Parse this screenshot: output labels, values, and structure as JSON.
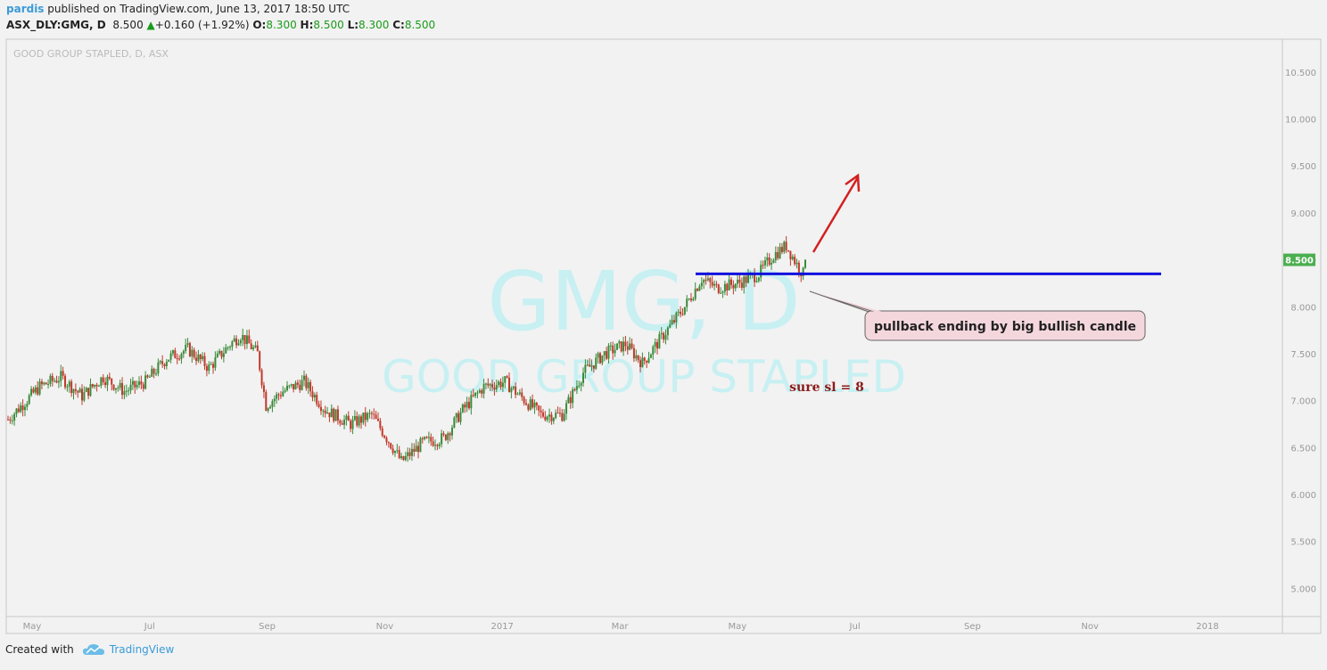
{
  "header": {
    "user": "pardis",
    "published": "published on TradingView.com, June 13, 2017 18:50 UTC",
    "symbol_line": "ASX_DLY:GMG, D",
    "last": "8.500",
    "change": "+0.160 (+1.92%)",
    "o_label": "O:",
    "o": "8.300",
    "h_label": "H:",
    "h": "8.500",
    "l_label": "L:",
    "l": "8.300",
    "c_label": "C:",
    "c": "8.500"
  },
  "footer": {
    "created_with": "Created with",
    "brand": "TradingView",
    "logo_icon": "tradingview-cloud-icon"
  },
  "colors": {
    "up": "#3a8a3a",
    "down": "#c0392b",
    "hline": "#1111dd",
    "arrow": "#d32020",
    "watermark": "#c8f0f2",
    "callout_bg": "#f4d7dd",
    "price_badge": "#4caf50"
  },
  "chart_data": {
    "type": "candlestick",
    "symbol_label": "GOOD GROUP STAPLED, D, ASX",
    "watermark_symbol": "GMG, D",
    "watermark_name": "GOOD GROUP STAPLED",
    "x_ticks": [
      "May",
      "Jul",
      "Sep",
      "Nov",
      "2017",
      "Mar",
      "May",
      "Jul",
      "Sep",
      "Nov",
      "2018"
    ],
    "y_ticks": [
      "10.500",
      "10.000",
      "9.500",
      "9.000",
      "8.500",
      "8.000",
      "7.500",
      "7.000",
      "6.500",
      "6.000",
      "5.500",
      "5.000"
    ],
    "ylim": [
      4.7,
      10.85
    ],
    "current_price": "8.500",
    "horizontal_line": 8.35,
    "annotation": "pullback ending by big bullish candle",
    "note": "sure sl = 8",
    "trend_path": [
      [
        0,
        6.8
      ],
      [
        15,
        7.15
      ],
      [
        25,
        7.25
      ],
      [
        35,
        7.05
      ],
      [
        45,
        7.25
      ],
      [
        55,
        7.1
      ],
      [
        65,
        7.2
      ],
      [
        75,
        7.45
      ],
      [
        85,
        7.55
      ],
      [
        95,
        7.35
      ],
      [
        105,
        7.6
      ],
      [
        110,
        7.7
      ],
      [
        118,
        7.5
      ],
      [
        122,
        6.95
      ],
      [
        130,
        7.1
      ],
      [
        140,
        7.2
      ],
      [
        150,
        6.9
      ],
      [
        162,
        6.75
      ],
      [
        172,
        6.85
      ],
      [
        182,
        6.5
      ],
      [
        186,
        6.35
      ],
      [
        196,
        6.55
      ],
      [
        206,
        6.6
      ],
      [
        215,
        6.9
      ],
      [
        225,
        7.15
      ],
      [
        235,
        7.2
      ],
      [
        242,
        7.05
      ],
      [
        252,
        6.85
      ],
      [
        262,
        6.85
      ],
      [
        272,
        7.3
      ],
      [
        282,
        7.5
      ],
      [
        292,
        7.6
      ],
      [
        300,
        7.4
      ],
      [
        310,
        7.7
      ],
      [
        320,
        8.0
      ],
      [
        328,
        8.3
      ],
      [
        335,
        8.2
      ],
      [
        345,
        8.25
      ],
      [
        355,
        8.35
      ],
      [
        362,
        8.55
      ],
      [
        368,
        8.65
      ],
      [
        373,
        8.45
      ],
      [
        376,
        8.35
      ],
      [
        377,
        8.5
      ]
    ]
  }
}
